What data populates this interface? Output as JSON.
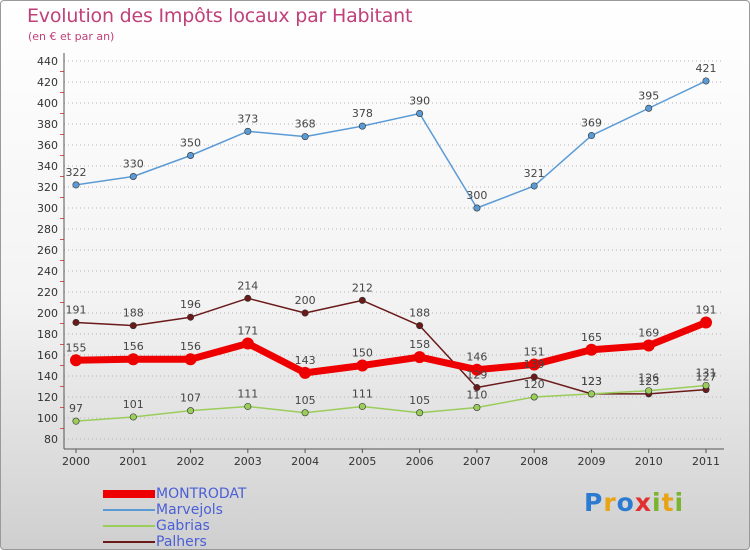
{
  "chart_data": {
    "type": "line",
    "title": "Evolution des Impôts locaux par Habitant",
    "subtitle": "(en € et par an)",
    "xlabel": "",
    "ylabel": "",
    "x": [
      "2000",
      "2001",
      "2002",
      "2003",
      "2004",
      "2005",
      "2006",
      "2007",
      "2008",
      "2009",
      "2010",
      "2011"
    ],
    "ylim": [
      80,
      440
    ],
    "yticks": [
      80,
      100,
      120,
      140,
      160,
      180,
      200,
      220,
      240,
      260,
      280,
      300,
      320,
      340,
      360,
      380,
      400,
      420,
      440
    ],
    "grid": "horizontal-dotted",
    "legend_position": "bottom-left",
    "series": [
      {
        "name": "Marvejols",
        "color": "#5b9bd5",
        "values": [
          322,
          330,
          350,
          373,
          368,
          378,
          390,
          300,
          321,
          369,
          395,
          421
        ]
      },
      {
        "name": "Palhers",
        "color": "#6b1a1a",
        "values": [
          191,
          188,
          196,
          214,
          200,
          212,
          188,
          129,
          139,
          123,
          123,
          127
        ]
      },
      {
        "name": "Gabrias",
        "color": "#9acd5a",
        "values": [
          97,
          101,
          107,
          111,
          105,
          111,
          105,
          110,
          120,
          123,
          126,
          131
        ]
      },
      {
        "name": "MONTRODAT",
        "color": "#ee0000",
        "values": [
          155,
          156,
          156,
          171,
          143,
          150,
          158,
          146,
          151,
          165,
          169,
          191
        ]
      }
    ]
  },
  "legend": {
    "items": [
      {
        "label": "MONTRODAT",
        "color": "#ee0000"
      },
      {
        "label": "Marvejols",
        "color": "#5b9bd5"
      },
      {
        "label": "Gabrias",
        "color": "#9acd5a"
      },
      {
        "label": "Palhers",
        "color": "#6b1a1a"
      }
    ]
  },
  "brand": {
    "letters": [
      {
        "char": "P",
        "color": "#2a7bd1"
      },
      {
        "char": "r",
        "color": "#e8a317"
      },
      {
        "char": "o",
        "color": "#2a7bd1"
      },
      {
        "char": "x",
        "color": "#e03030"
      },
      {
        "char": "i",
        "color": "#7ab32e"
      },
      {
        "char": "t",
        "color": "#e8a317"
      },
      {
        "char": "i",
        "color": "#7ab32e"
      }
    ]
  }
}
